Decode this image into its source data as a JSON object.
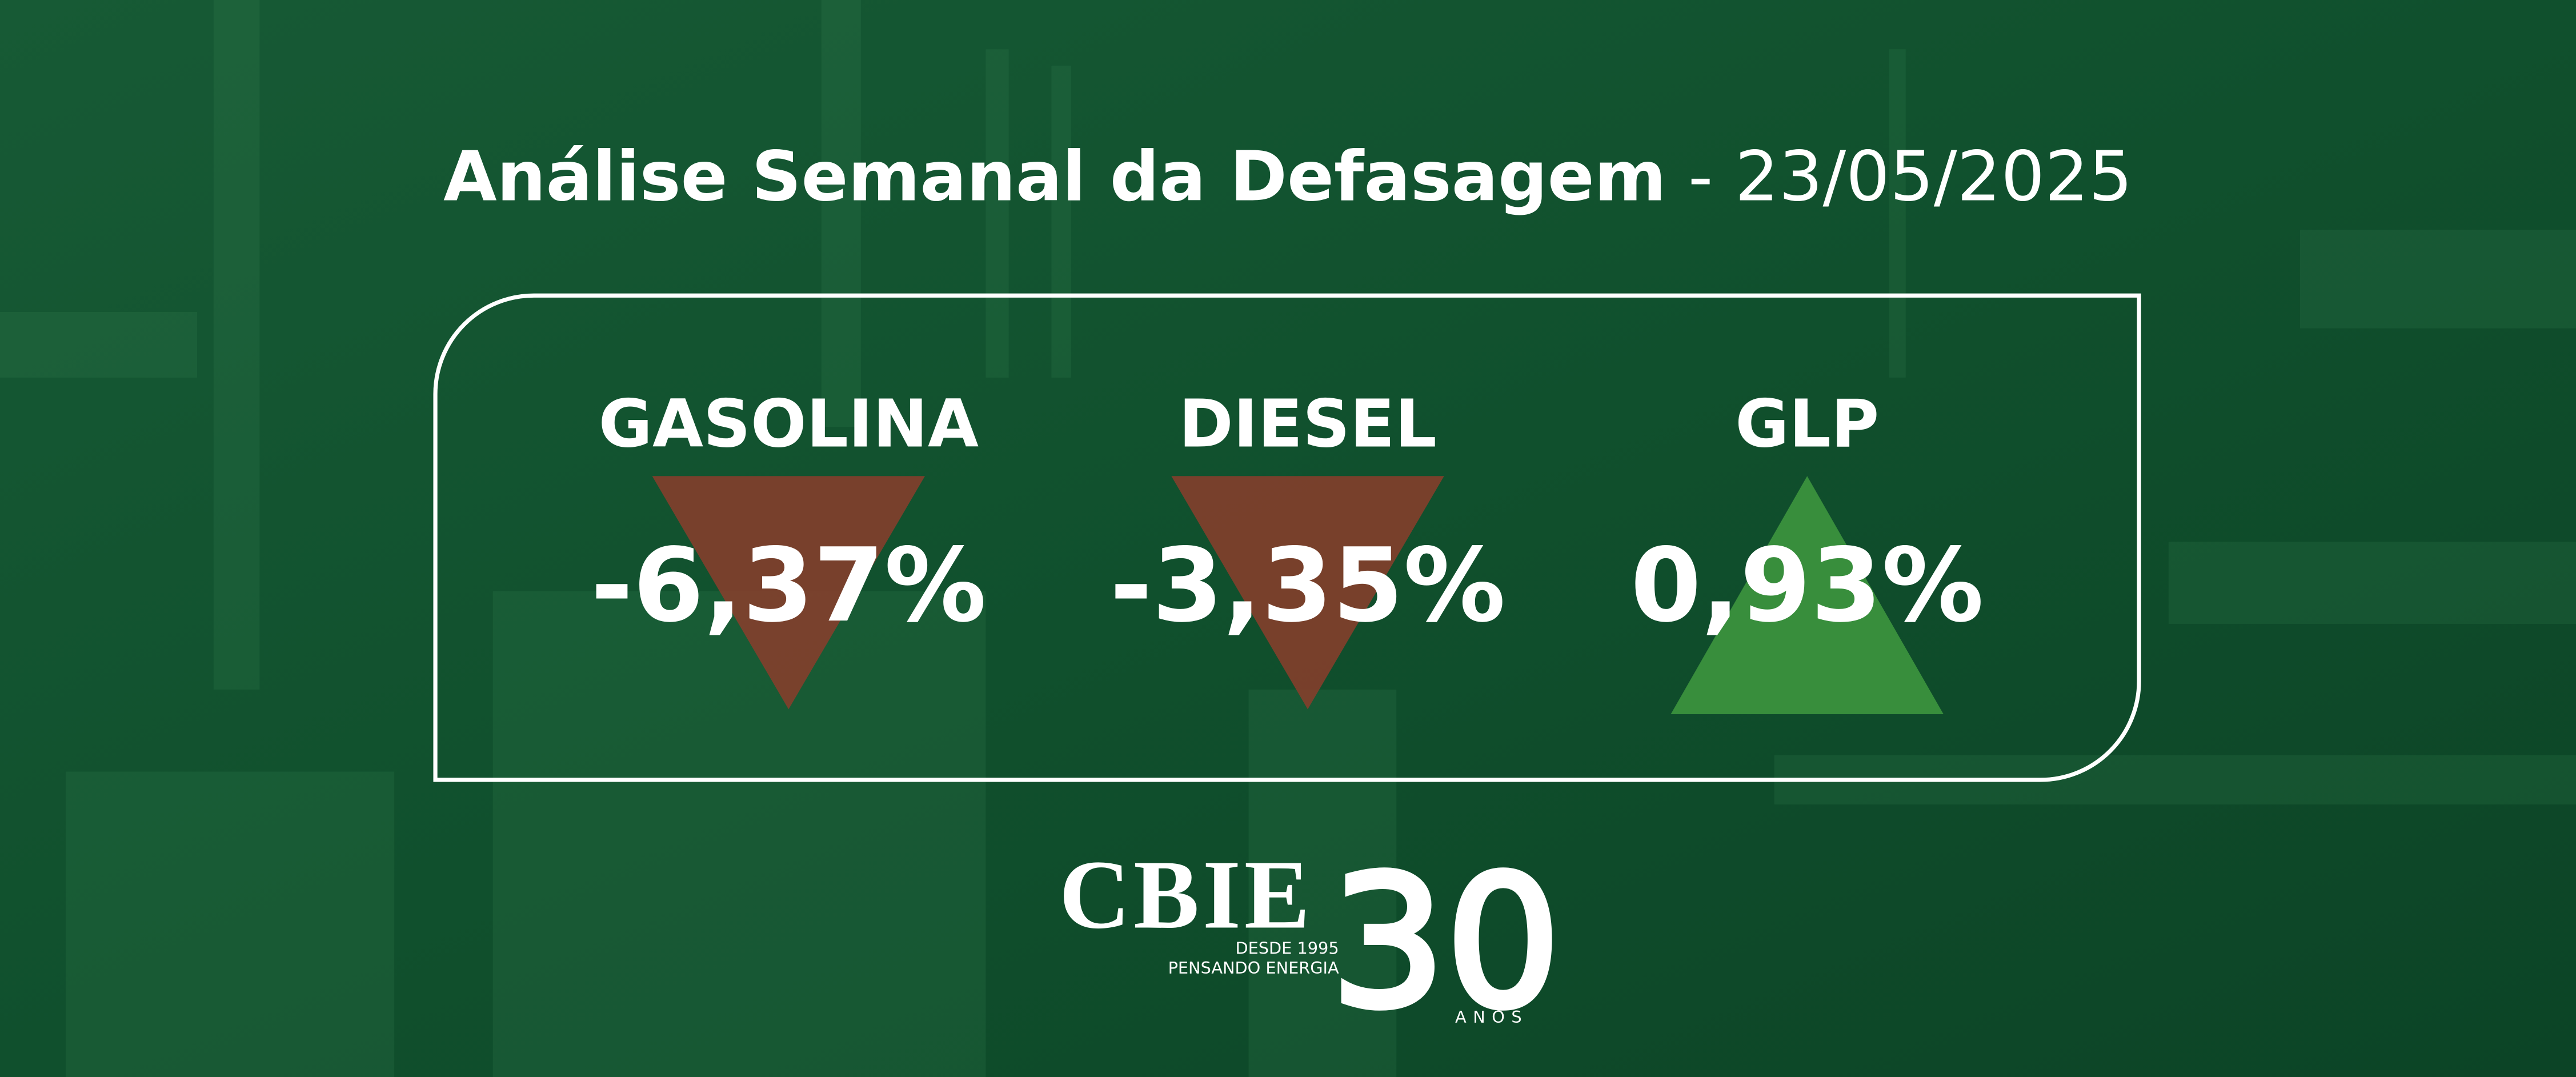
{
  "header": {
    "title": "Análise Semanal da Defasagem",
    "separator": "-",
    "date": "23/05/2025"
  },
  "items": [
    {
      "label": "GASOLINA",
      "value": "-6,37%",
      "color": "#8b3d2b"
    },
    {
      "label": "DIESEL",
      "value": "-3,35%",
      "color": "#8b3d2b"
    },
    {
      "label": "GLP",
      "value": "0,93%",
      "color": "#3f9a3f"
    }
  ],
  "logo": {
    "name": "CBIE",
    "since": "DESDE 1995",
    "tagline": "PENSANDO ENERGIA",
    "years": "30",
    "years_word": "ANOS"
  }
}
